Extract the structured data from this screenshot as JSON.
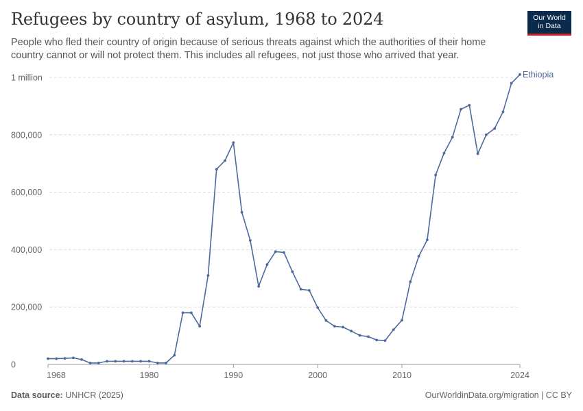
{
  "header": {
    "title": "Refugees by country of asylum, 1968 to 2024",
    "subtitle": "People who fled their country of origin because of serious threats against which the authorities of their home country cannot or will not protect them. This includes all refugees, not just those who arrived that year."
  },
  "logo": {
    "line1": "Our World",
    "line2": "in Data"
  },
  "footer": {
    "source_label": "Data source:",
    "source_value": "UNHCR (2025)",
    "link": "OurWorldinData.org/migration | CC BY"
  },
  "colors": {
    "series": "#4c6a9c",
    "grid": "#dddddd",
    "axis": "#999999"
  },
  "chart_data": {
    "type": "line",
    "title": "Refugees by country of asylum, 1968 to 2024",
    "xlabel": "",
    "ylabel": "",
    "xlim": [
      1968,
      2024
    ],
    "ylim": [
      0,
      1000000
    ],
    "y_ticks": [
      {
        "value": 0,
        "label": "0"
      },
      {
        "value": 200000,
        "label": "200,000"
      },
      {
        "value": 400000,
        "label": "400,000"
      },
      {
        "value": 600000,
        "label": "600,000"
      },
      {
        "value": 800000,
        "label": "800,000"
      },
      {
        "value": 1000000,
        "label": "1 million"
      }
    ],
    "x_ticks": [
      {
        "value": 1968,
        "label": "1968"
      },
      {
        "value": 1980,
        "label": "1980"
      },
      {
        "value": 1990,
        "label": "1990"
      },
      {
        "value": 2000,
        "label": "2000"
      },
      {
        "value": 2010,
        "label": "2010"
      },
      {
        "value": 2024,
        "label": "2024"
      }
    ],
    "series": [
      {
        "name": "Ethiopia",
        "x": [
          1968,
          1969,
          1970,
          1971,
          1972,
          1973,
          1974,
          1975,
          1976,
          1977,
          1978,
          1979,
          1980,
          1981,
          1982,
          1983,
          1984,
          1985,
          1986,
          1987,
          1988,
          1989,
          1990,
          1991,
          1992,
          1993,
          1994,
          1995,
          1996,
          1997,
          1998,
          1999,
          2000,
          2001,
          2002,
          2003,
          2004,
          2005,
          2006,
          2007,
          2008,
          2009,
          2010,
          2011,
          2012,
          2013,
          2014,
          2015,
          2016,
          2017,
          2018,
          2019,
          2020,
          2021,
          2022,
          2023,
          2024
        ],
        "values": [
          20000,
          20000,
          21000,
          23000,
          17000,
          5000,
          5000,
          11000,
          11000,
          11000,
          11000,
          11000,
          11000,
          5000,
          5000,
          32000,
          180000,
          180000,
          133000,
          310000,
          680000,
          710000,
          773000,
          530000,
          432000,
          272000,
          348000,
          393000,
          390000,
          323000,
          262000,
          258000,
          198000,
          153000,
          133000,
          130000,
          116000,
          101000,
          97000,
          85000,
          83000,
          121000,
          154000,
          288000,
          377000,
          434000,
          660000,
          736000,
          792000,
          889000,
          903000,
          734000,
          800000,
          822000,
          880000,
          980000,
          1010000
        ]
      }
    ]
  }
}
